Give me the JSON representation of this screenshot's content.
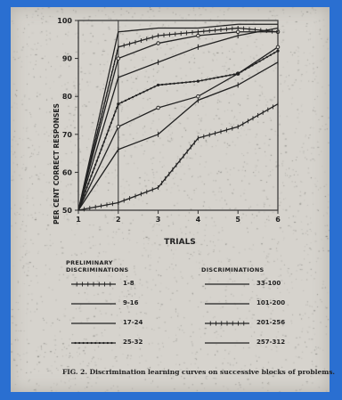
{
  "chart_data": {
    "type": "line",
    "xlabel": "TRIALS",
    "ylabel": "PER CENT CORRECT RESPONSES",
    "x": [
      1,
      2,
      3,
      4,
      5,
      6
    ],
    "xlim": [
      1,
      6
    ],
    "ylim": [
      50,
      100
    ],
    "yticks": [
      50,
      60,
      70,
      80,
      90,
      100
    ],
    "xticks": [
      1,
      2,
      3,
      4,
      5,
      6
    ],
    "reference_line_x": 2,
    "legend_headers": {
      "preliminary": "PRELIMINARY\nDISCRIMINATIONS",
      "discriminations": "DISCRIMINATIONS"
    },
    "series": [
      {
        "name": "1-8",
        "group": "preliminary",
        "style": "cross",
        "values": [
          50,
          52,
          56,
          69,
          72,
          78
        ]
      },
      {
        "name": "9-16",
        "group": "preliminary",
        "style": "tick",
        "values": [
          50,
          66,
          70,
          79,
          83,
          89
        ]
      },
      {
        "name": "17-24",
        "group": "preliminary",
        "style": "circle",
        "values": [
          50,
          72,
          77,
          80,
          86,
          93
        ]
      },
      {
        "name": "25-32",
        "group": "preliminary",
        "style": "dense",
        "values": [
          50,
          78,
          83,
          84,
          86,
          92
        ]
      },
      {
        "name": "33-100",
        "group": "discriminations",
        "style": "tick",
        "values": [
          50,
          85,
          89,
          93,
          96,
          98
        ]
      },
      {
        "name": "101-200",
        "group": "discriminations",
        "style": "circle",
        "values": [
          50,
          90,
          94,
          96,
          97,
          97
        ]
      },
      {
        "name": "201-256",
        "group": "discriminations",
        "style": "cross",
        "values": [
          50,
          93,
          96,
          97,
          98,
          97
        ]
      },
      {
        "name": "257-312",
        "group": "discriminations",
        "style": "solid",
        "values": [
          50,
          97,
          98,
          98,
          99,
          99
        ]
      }
    ]
  },
  "caption": {
    "lead": "FIG. 2.",
    "text": "Discrimination learning curves on successive blocks of problems."
  }
}
